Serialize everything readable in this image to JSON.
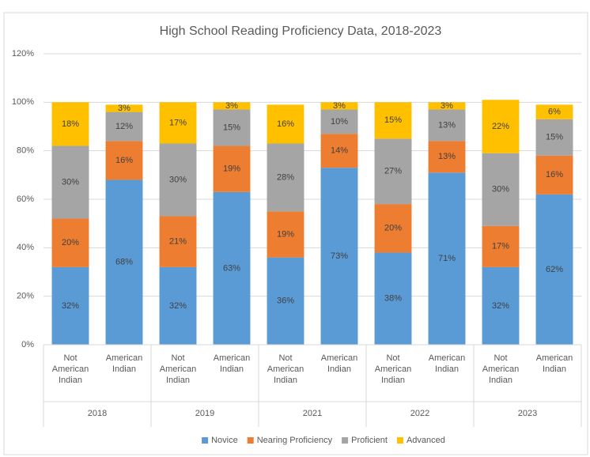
{
  "chart_data": {
    "type": "stacked-bar",
    "title": "High School Reading Proficiency Data, 2018-2023",
    "categories": [
      "Not American Indian",
      "American Indian",
      "Not American Indian",
      "American Indian",
      "Not American Indian",
      "American Indian",
      "Not American Indian",
      "American Indian",
      "Not American Indian",
      "American Indian"
    ],
    "groups": [
      "2018",
      "2019",
      "2021",
      "2022",
      "2023"
    ],
    "series": [
      {
        "name": "Novice",
        "color": "#5b9bd5",
        "values": [
          32,
          68,
          32,
          63,
          36,
          73,
          38,
          71,
          32,
          62
        ],
        "value_labels": [
          "32%",
          "68%",
          "32%",
          "63%",
          "36%",
          "73%",
          "38%",
          "71%",
          "32%",
          "62%"
        ]
      },
      {
        "name": "Nearing Proficiency",
        "color": "#ed7d31",
        "values": [
          20,
          16,
          21,
          19,
          19,
          14,
          20,
          13,
          17,
          16
        ],
        "value_labels": [
          "20%",
          "16%",
          "21%",
          "19%",
          "19%",
          "14%",
          "20%",
          "13%",
          "17%",
          "16%"
        ]
      },
      {
        "name": "Proficient",
        "color": "#a5a5a5",
        "values": [
          30,
          12,
          30,
          15,
          28,
          10,
          27,
          13,
          30,
          15
        ],
        "value_labels": [
          "30%",
          "12%",
          "30%",
          "15%",
          "28%",
          "10%",
          "27%",
          "13%",
          "30%",
          "15%"
        ]
      },
      {
        "name": "Advanced",
        "color": "#ffc000",
        "values": [
          18,
          3,
          17,
          3,
          16,
          3,
          15,
          3,
          22,
          6
        ],
        "value_labels": [
          "18%",
          "3%",
          "17%",
          "3%",
          "16%",
          "3%",
          "15%",
          "3%",
          "22%",
          "6%"
        ]
      }
    ],
    "ylim": [
      0,
      120
    ],
    "yticks": [
      {
        "value": 0,
        "label": "0%"
      },
      {
        "value": 20,
        "label": "20%"
      },
      {
        "value": 40,
        "label": "40%"
      },
      {
        "value": 60,
        "label": "60%"
      },
      {
        "value": 80,
        "label": "80%"
      },
      {
        "value": 100,
        "label": "100%"
      },
      {
        "value": 120,
        "label": "120%"
      }
    ],
    "grid": true,
    "legend": "bottom"
  }
}
